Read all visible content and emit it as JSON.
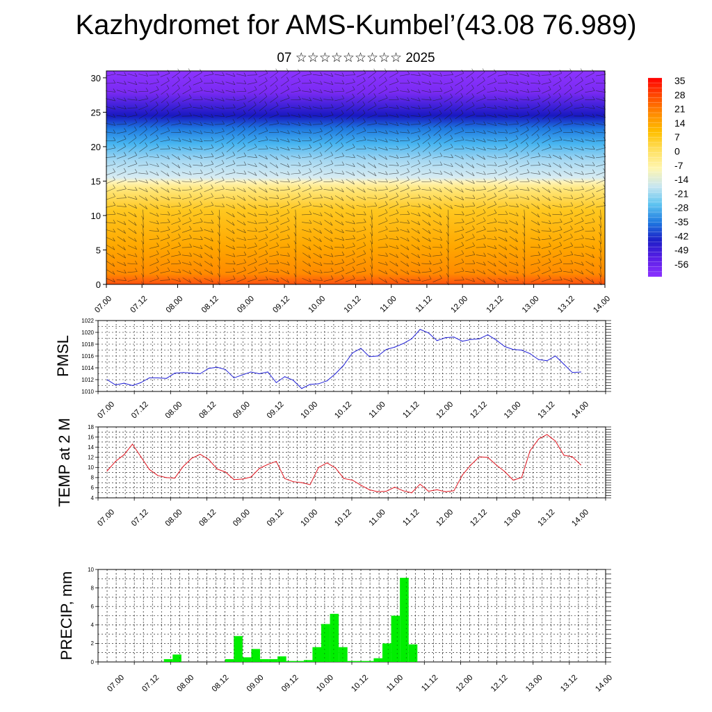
{
  "title": "Kazhydromet for AMS-Kumbel’(43.08 76.989)",
  "subtitle": "07 ☆☆☆☆☆☆☆☆☆ 2025",
  "colors": {
    "pmsl_line": "#1f1fd6",
    "temp_line": "#e0141e",
    "precip_bar": "#00ee00",
    "grid": "#000000"
  },
  "chart_data": [
    {
      "type": "heatmap",
      "name_on_chart": "",
      "x_tick_labels": [
        "07.00",
        "07.12",
        "08.00",
        "08.12",
        "09.00",
        "09.12",
        "10.00",
        "10.12",
        "11.00",
        "11.12",
        "12.00",
        "12.12",
        "13.00",
        "13.12",
        "14.00"
      ],
      "y_ticks": [
        0,
        5,
        10,
        15,
        20,
        25,
        30
      ],
      "ylim": [
        0,
        31
      ],
      "colorbar_labels": [
        "35",
        "28",
        "21",
        "14",
        "7",
        "0",
        "-7",
        "-14",
        "-21",
        "-28",
        "-35",
        "-42",
        "-49",
        "-56"
      ],
      "colormap_stops": [
        "#ff0000",
        "#ff4a00",
        "#ff8c00",
        "#ffc000",
        "#ffe060",
        "#fff6b0",
        "#c8e6f0",
        "#5ec4f0",
        "#1e78e0",
        "#1e1ec8",
        "#5a1ee6",
        "#8c32ff"
      ],
      "overlay": "wind barbs"
    },
    {
      "type": "line",
      "ylabel": "PMSL",
      "ylim": [
        1010,
        1022
      ],
      "y_ticks": [
        1010,
        1012,
        1014,
        1016,
        1018,
        1020,
        1022
      ],
      "x_tick_labels": [
        "07.00",
        "07.12",
        "08.00",
        "08.12",
        "09.00",
        "09.12",
        "10.00",
        "10.12",
        "11.00",
        "11.12",
        "12.00",
        "12.12",
        "13.00",
        "13.12",
        "14.00"
      ],
      "x_hours": [
        0,
        3,
        6,
        9,
        12,
        15,
        18,
        21,
        24,
        27,
        30,
        33,
        36,
        39,
        42,
        45,
        48,
        51,
        54,
        57,
        60,
        63,
        66,
        69,
        72,
        75,
        78,
        81,
        84,
        87,
        90,
        93,
        96,
        99,
        102,
        105,
        108,
        111,
        114,
        117,
        120,
        123,
        126,
        129,
        132,
        135,
        138,
        141,
        144,
        147,
        150,
        153,
        156,
        159,
        162,
        165,
        168
      ],
      "values": [
        1012,
        1011.1,
        1011.4,
        1011,
        1011.5,
        1012.3,
        1012.3,
        1012.2,
        1013.1,
        1013.2,
        1013.1,
        1013,
        1013.9,
        1014.1,
        1013.7,
        1012.3,
        1012.8,
        1013.3,
        1013,
        1013.3,
        1011.5,
        1012.5,
        1011.9,
        1010.5,
        1011.2,
        1011.3,
        1011.8,
        1013,
        1014.5,
        1016.5,
        1017.3,
        1015.9,
        1016,
        1017.1,
        1017.5,
        1018.1,
        1018.9,
        1020.5,
        1019.9,
        1018.6,
        1019.1,
        1019.2,
        1018.5,
        1018.8,
        1018.9,
        1019.6,
        1018.7,
        1017.6,
        1017.1,
        1017,
        1016.4,
        1015.4,
        1015.2,
        1016,
        1014.6,
        1013.2,
        1013.3
      ]
    },
    {
      "type": "line",
      "ylabel": "TEMP at 2 M",
      "ylim": [
        4,
        18
      ],
      "y_ticks": [
        4,
        6,
        8,
        10,
        12,
        14,
        16,
        18
      ],
      "x_tick_labels": [
        "07.00",
        "07.12",
        "08.00",
        "08.12",
        "09.00",
        "09.12",
        "10.00",
        "10.12",
        "11.00",
        "11.12",
        "12.00",
        "12.12",
        "13.00",
        "13.12",
        "14.00"
      ],
      "x_hours": [
        0,
        3,
        6,
        9,
        12,
        15,
        18,
        21,
        24,
        27,
        30,
        33,
        36,
        39,
        42,
        45,
        48,
        51,
        54,
        57,
        60,
        63,
        66,
        69,
        72,
        75,
        78,
        81,
        84,
        87,
        90,
        93,
        96,
        99,
        102,
        105,
        108,
        111,
        114,
        117,
        120,
        123,
        126,
        129,
        132,
        135,
        138,
        141,
        144,
        147,
        150,
        153,
        156,
        159,
        162,
        165,
        168
      ],
      "values": [
        9.3,
        11.2,
        12.5,
        14.6,
        12.1,
        9.6,
        8.4,
        8,
        7.9,
        10.2,
        11.8,
        12.6,
        11.6,
        9.7,
        9.1,
        7.6,
        7.7,
        8.1,
        9.8,
        10.6,
        11.2,
        7.8,
        7.2,
        7,
        6.6,
        10,
        10.9,
        9.9,
        7.8,
        7.5,
        6.5,
        5.6,
        5.2,
        5.3,
        6.1,
        5.4,
        5,
        6.7,
        5.3,
        5.6,
        5.2,
        5.4,
        8.5,
        10.5,
        12.1,
        12,
        10.5,
        9.2,
        7.5,
        8,
        13.3,
        15.6,
        16.5,
        15.2,
        12.4,
        12.1,
        10.5
      ]
    },
    {
      "type": "bar",
      "ylabel": "PRECIP, mm",
      "ylim": [
        0,
        10
      ],
      "y_ticks": [
        0,
        2,
        4,
        6,
        8,
        10
      ],
      "x_tick_labels": [
        "07.00",
        "07.12",
        "08.00",
        "08.12",
        "09.00",
        "09.12",
        "10.00",
        "10.12",
        "11.00",
        "11.12",
        "12.00",
        "12.12",
        "13.00",
        "13.12",
        "14.00"
      ],
      "bar_width_hours": 3,
      "x_hours": [
        21,
        24,
        42,
        45,
        48,
        51,
        54,
        57,
        60,
        63,
        66,
        69,
        72,
        75,
        78,
        81,
        84,
        87,
        90,
        93,
        96,
        99,
        102,
        105
      ],
      "values": [
        0.3,
        0.8,
        0.3,
        2.8,
        0.5,
        1.4,
        0.3,
        0.3,
        0.6,
        0.1,
        0.1,
        0.2,
        1.6,
        4.1,
        5.2,
        1.6,
        0.1,
        0.1,
        0.1,
        0.4,
        2,
        5,
        9.1,
        1.9
      ]
    }
  ]
}
